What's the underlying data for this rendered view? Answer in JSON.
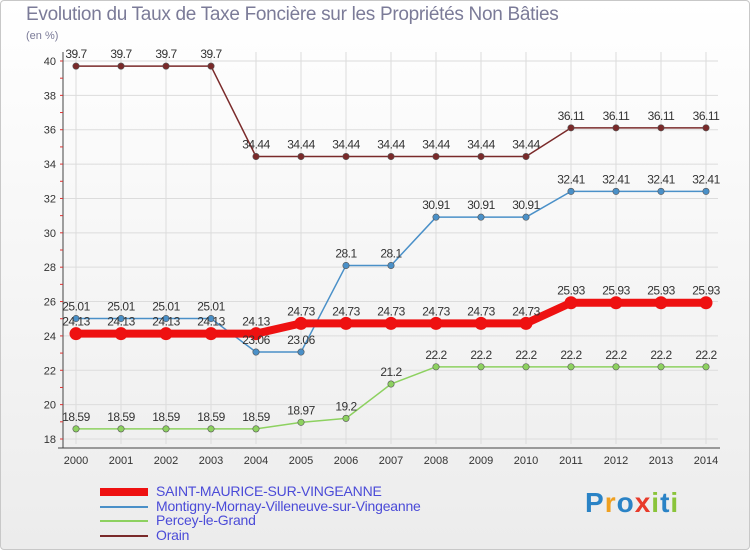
{
  "chart_data": {
    "type": "line",
    "title": "Evolution du Taux de Taxe Foncière sur les Propriétés Non Bâties",
    "ylabel": "(en %)",
    "xlabel": "",
    "x": [
      2000,
      2001,
      2002,
      2003,
      2004,
      2005,
      2006,
      2007,
      2008,
      2009,
      2010,
      2011,
      2012,
      2013,
      2014
    ],
    "x_tick_labels": [
      "2000",
      "2001",
      "2002",
      "2003",
      "2004",
      "2005",
      "2006",
      "2007",
      "2008",
      "2009",
      "2010",
      "2011",
      "2012",
      "2013",
      "2014"
    ],
    "ylim": [
      18,
      40
    ],
    "y_ticks": [
      18,
      20,
      22,
      24,
      26,
      28,
      30,
      32,
      34,
      36,
      38,
      40
    ],
    "grid": true,
    "legend_position": "bottom-left",
    "series": [
      {
        "name": "Orain",
        "color": "#7a2a2a",
        "values": [
          39.7,
          39.7,
          39.7,
          39.7,
          34.44,
          34.44,
          34.44,
          34.44,
          34.44,
          34.44,
          34.44,
          36.11,
          36.11,
          36.11,
          36.11
        ],
        "labels": [
          "39.7",
          "39.7",
          "39.7",
          "39.7",
          "34.44",
          "34.44",
          "34.44",
          "34.44",
          "34.44",
          "34.44",
          "34.44",
          "36.11",
          "36.11",
          "36.11",
          "36.11"
        ]
      },
      {
        "name": "Montigny-Mornay-Villeneuve-sur-Vingeanne",
        "color": "#4a90c8",
        "values": [
          25.01,
          25.01,
          25.01,
          25.01,
          23.06,
          23.06,
          28.1,
          28.1,
          30.91,
          30.91,
          30.91,
          32.41,
          32.41,
          32.41,
          32.41
        ],
        "labels": [
          "25.01",
          "25.01",
          "25.01",
          "25.01",
          "23.06",
          "23.06",
          "28.1",
          "28.1",
          "30.91",
          "30.91",
          "30.91",
          "32.41",
          "32.41",
          "32.41",
          "32.41"
        ]
      },
      {
        "name": "SAINT-MAURICE-SUR-VINGEANNE",
        "color": "#ee1111",
        "values": [
          24.13,
          24.13,
          24.13,
          24.13,
          24.13,
          24.73,
          24.73,
          24.73,
          24.73,
          24.73,
          24.73,
          25.93,
          25.93,
          25.93,
          25.93
        ],
        "labels": [
          "24.13",
          "24.13",
          "24.13",
          "24.13",
          "24.13",
          "24.73",
          "24.73",
          "24.73",
          "24.73",
          "24.73",
          "24.73",
          "25.93",
          "25.93",
          "25.93",
          "25.93"
        ]
      },
      {
        "name": "Percey-le-Grand",
        "color": "#8dd160",
        "values": [
          18.59,
          18.59,
          18.59,
          18.59,
          18.59,
          18.97,
          19.2,
          21.2,
          22.2,
          22.2,
          22.2,
          22.2,
          22.2,
          22.2,
          22.2
        ],
        "labels": [
          "18.59",
          "18.59",
          "18.59",
          "18.59",
          "18.59",
          "18.97",
          "19.2",
          "21.2",
          "22.2",
          "22.2",
          "22.2",
          "22.2",
          "22.2",
          "22.2",
          "22.2"
        ]
      }
    ],
    "legend": [
      {
        "name": "SAINT-MAURICE-SUR-VINGEANNE",
        "color": "#ee1111"
      },
      {
        "name": "Montigny-Mornay-Villeneuve-sur-Vingeanne",
        "color": "#4a90c8"
      },
      {
        "name": "Percey-le-Grand",
        "color": "#8dd160"
      },
      {
        "name": "Orain",
        "color": "#7a2a2a"
      }
    ]
  },
  "logo": {
    "letters": [
      "P",
      "r",
      "o",
      "x",
      "i",
      "t",
      "i"
    ],
    "colors": [
      "#2a83c6",
      "#f0a020",
      "#2a83c6",
      "#e83a2a",
      "#8ac43a",
      "#2a83c6",
      "#8ac43a"
    ]
  }
}
